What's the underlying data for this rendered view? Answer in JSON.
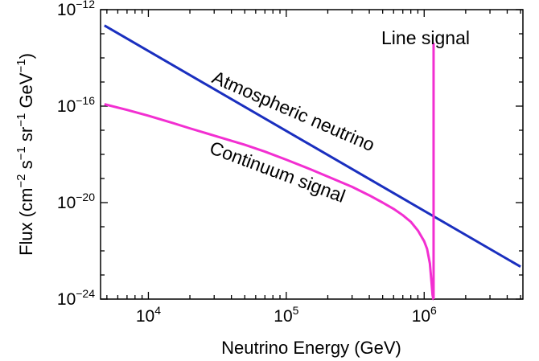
{
  "chart_data": {
    "type": "line",
    "title": "",
    "xlabel": "Neutrino Energy (GeV)",
    "ylabel": {
      "parts": [
        {
          "t": "Flux (cm"
        },
        {
          "t": "−2",
          "sup": true
        },
        {
          "t": " s"
        },
        {
          "t": "−1",
          "sup": true
        },
        {
          "t": " sr"
        },
        {
          "t": "−1",
          "sup": true
        },
        {
          "t": " GeV"
        },
        {
          "t": "−1",
          "sup": true
        },
        {
          "t": ")"
        }
      ]
    },
    "x_scale": "log",
    "y_scale": "log",
    "xlim": [
      4500,
      5200000
    ],
    "ylim": [
      1e-24,
      1e-12
    ],
    "x_ticks": [
      {
        "value": 10000,
        "base": "10",
        "exp": "4"
      },
      {
        "value": 100000,
        "base": "10",
        "exp": "5"
      },
      {
        "value": 1000000,
        "base": "10",
        "exp": "6"
      }
    ],
    "y_ticks": [
      {
        "value": 1e-24,
        "base": "10",
        "exp": "−24"
      },
      {
        "value": 1e-20,
        "base": "10",
        "exp": "−20"
      },
      {
        "value": 1e-16,
        "base": "10",
        "exp": "−16"
      },
      {
        "value": 1e-12,
        "base": "10",
        "exp": "−12"
      }
    ],
    "grid": false,
    "legend": "none",
    "series": [
      {
        "name": "Atmospheric neutrino",
        "color": "#1a2fbf",
        "x": [
          4800,
          5000000
        ],
        "y": [
          2.2e-13,
          2.2e-23
        ]
      },
      {
        "name": "Continuum signal",
        "color": "#f22fd1",
        "x": [
          4800,
          7000,
          10000,
          15000,
          20000,
          30000,
          50000,
          70000,
          100000,
          150000,
          200000,
          300000,
          400000,
          500000,
          600000,
          700000,
          800000,
          900000,
          1000000,
          1050000,
          1100000,
          1130000,
          1150000,
          1165000,
          1170000
        ],
        "y": [
          1.2e-16,
          7e-17,
          4e-17,
          2e-17,
          1.2e-17,
          6e-18,
          2.5e-18,
          1.3e-18,
          6e-19,
          2.4e-19,
          1.2e-19,
          4.5e-20,
          2e-20,
          1e-20,
          5.5e-21,
          3e-21,
          1.6e-21,
          7e-22,
          2.5e-22,
          1.2e-22,
          3e-23,
          5e-24,
          1.5e-24,
          1e-24,
          1e-24
        ]
      },
      {
        "name": "Line signal",
        "color": "#f22fd1",
        "x": [
          1170000,
          1170000
        ],
        "y": [
          4.2e-14,
          1e-24
        ]
      }
    ],
    "annotations": [
      {
        "text": "Atmospheric neutrino",
        "color": "#1a2fbf"
      },
      {
        "text": "Continuum signal",
        "color": "#f22fd1"
      },
      {
        "text": "Line signal",
        "color": "#f22fd1"
      }
    ]
  }
}
